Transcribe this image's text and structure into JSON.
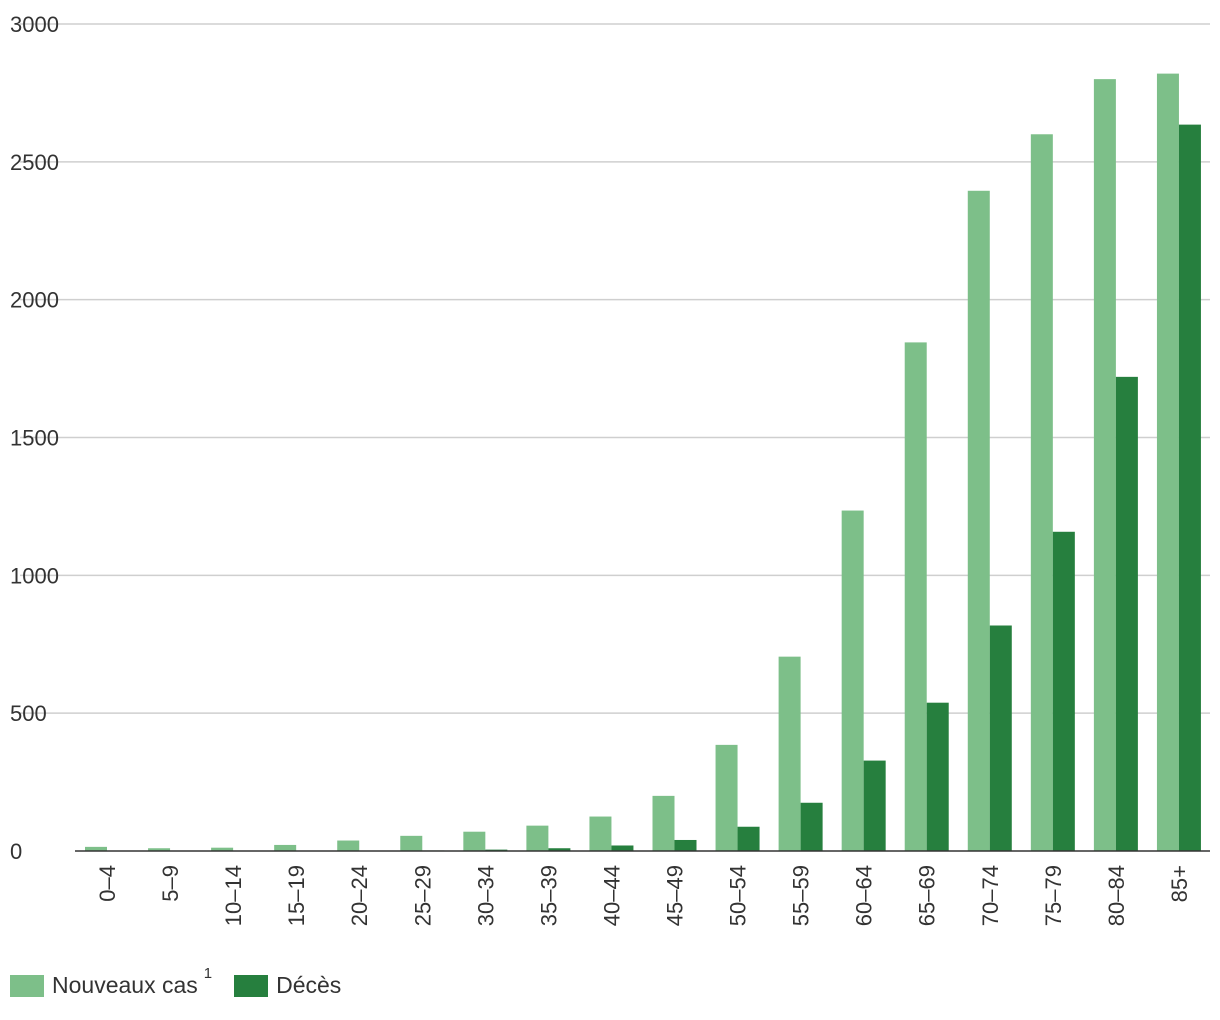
{
  "chart_data": {
    "type": "bar",
    "categories": [
      "0–4",
      "5–9",
      "10–14",
      "15–19",
      "20–24",
      "25–29",
      "30–34",
      "35–39",
      "40–44",
      "45–49",
      "50–54",
      "55–59",
      "60–64",
      "65–69",
      "70–74",
      "75–79",
      "80–84",
      "85+"
    ],
    "series": [
      {
        "name": "Nouveaux cas",
        "color": "#7dbf89",
        "values": [
          15,
          10,
          12,
          22,
          38,
          55,
          70,
          92,
          125,
          200,
          385,
          705,
          1235,
          1845,
          2395,
          2600,
          2800,
          2820
        ]
      },
      {
        "name": "Décès",
        "color": "#267f3e",
        "values": [
          0,
          0,
          0,
          0,
          1,
          2,
          5,
          10,
          20,
          40,
          88,
          175,
          328,
          538,
          818,
          1158,
          1720,
          2635
        ]
      }
    ],
    "yticks": [
      "0",
      "500",
      "1000",
      "1500",
      "2000",
      "2500",
      "3000"
    ],
    "ylim": [
      0,
      3000
    ],
    "grid": true,
    "legend": {
      "items": [
        {
          "label": "Nouveaux cas",
          "superscript": "1",
          "color": "#7dbf89"
        },
        {
          "label": "Décès",
          "color": "#267f3e"
        }
      ],
      "placement": "bottom-left"
    },
    "title": "",
    "xlabel": "",
    "ylabel": ""
  }
}
